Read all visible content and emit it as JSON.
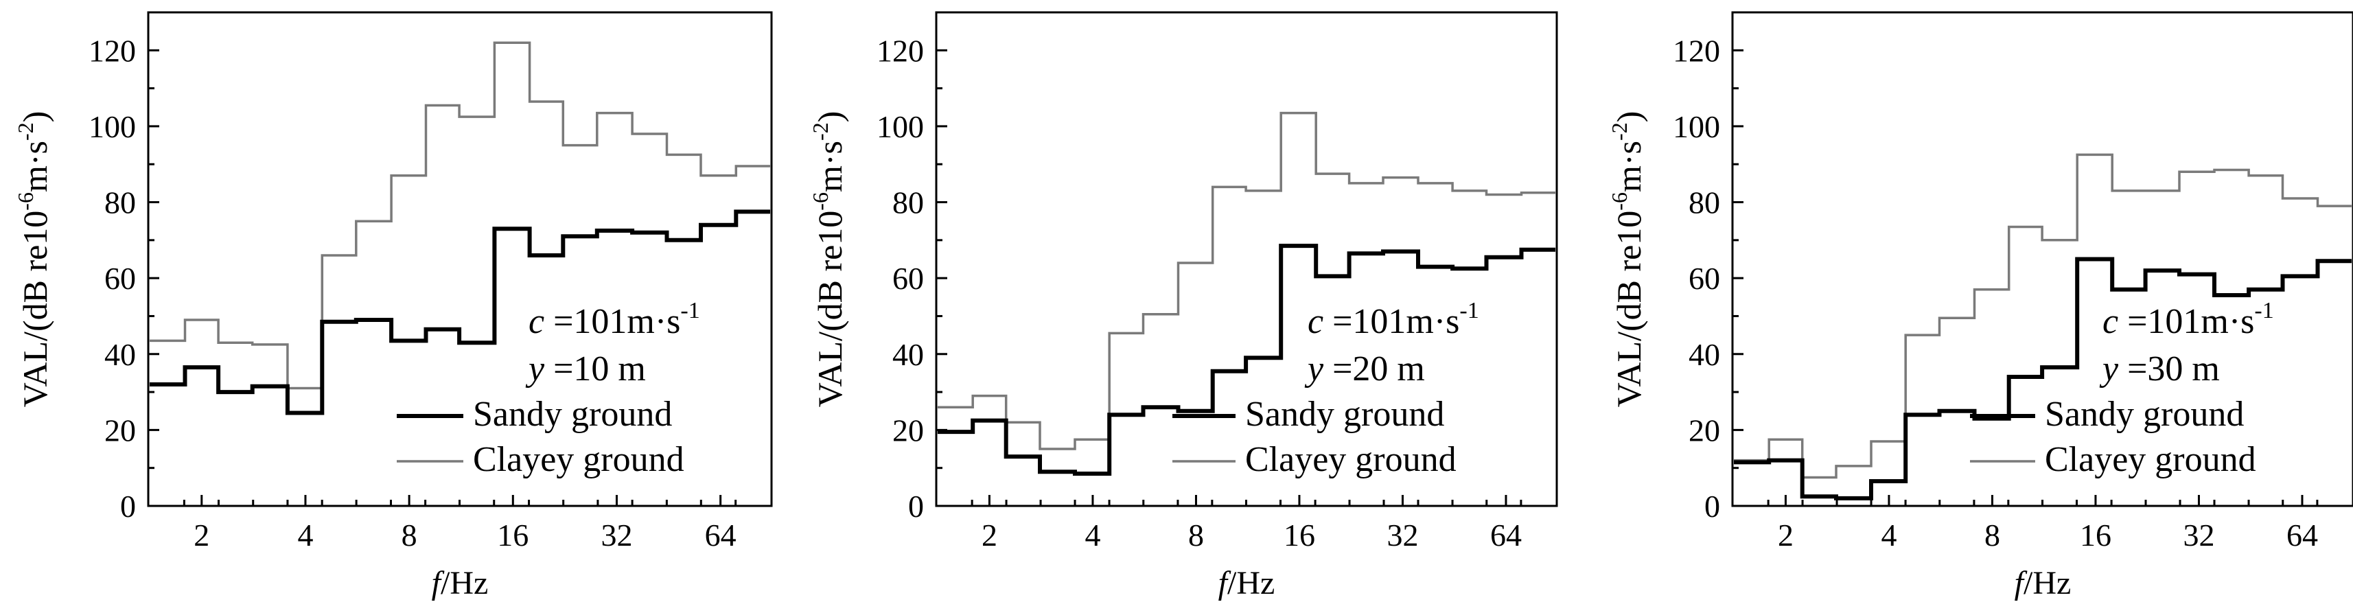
{
  "chart_data": [
    {
      "type": "line",
      "step": true,
      "x_scale": "log2",
      "xlabel_italic": "f",
      "xlabel_unit": "/Hz",
      "ylabel": "VAL/(dB re10-6m·s-2)",
      "ylabel_parts": [
        "VAL/(dB re10",
        "-6",
        "m·s",
        "-2",
        ")"
      ],
      "xticks": [
        "2",
        "4",
        "8",
        "16",
        "32",
        "64"
      ],
      "yticks": [
        "0",
        "20",
        "40",
        "60",
        "80",
        "100",
        "120"
      ],
      "ylim": [
        0,
        130
      ],
      "xlim": [
        1.4,
        90
      ],
      "annotation": {
        "c_label": "c",
        "c_value": "=101m·s",
        "c_exp": "-1",
        "y_label": "y",
        "y_value": "=10 m"
      },
      "x": [
        1.6,
        2,
        2.5,
        3.15,
        4,
        5,
        6.3,
        8,
        10,
        12.5,
        16,
        20,
        25,
        31.5,
        40,
        50,
        63,
        80
      ],
      "series": [
        {
          "name": "Sandy ground",
          "color": "#000000",
          "values": [
            32,
            36.5,
            30,
            31.5,
            24.5,
            48.5,
            49,
            43.5,
            46.5,
            43,
            73,
            66,
            71,
            72.5,
            72,
            70,
            74,
            77.5
          ]
        },
        {
          "name": "Clayey ground",
          "color": "#7a7a7a",
          "values": [
            43.5,
            49,
            43,
            42.5,
            31,
            66,
            75,
            87,
            105.5,
            102.5,
            122,
            106.5,
            95,
            103.5,
            98,
            92.5,
            87,
            89.5
          ]
        }
      ]
    },
    {
      "type": "line",
      "step": true,
      "x_scale": "log2",
      "xlabel_italic": "f",
      "xlabel_unit": "/Hz",
      "ylabel": "VAL/(dB re10-6m·s-2)",
      "ylabel_parts": [
        "VAL/(dB re10",
        "-6",
        "m·s",
        "-2",
        ")"
      ],
      "xticks": [
        "2",
        "4",
        "8",
        "16",
        "32",
        "64"
      ],
      "yticks": [
        "0",
        "20",
        "40",
        "60",
        "80",
        "100",
        "120"
      ],
      "ylim": [
        0,
        130
      ],
      "xlim": [
        1.4,
        90
      ],
      "annotation": {
        "c_label": "c",
        "c_value": "=101m·s",
        "c_exp": "-1",
        "y_label": "y",
        "y_value": "=20 m"
      },
      "x": [
        1.6,
        2,
        2.5,
        3.15,
        4,
        5,
        6.3,
        8,
        10,
        12.5,
        16,
        20,
        25,
        31.5,
        40,
        50,
        63,
        80
      ],
      "series": [
        {
          "name": "Sandy ground",
          "color": "#000000",
          "values": [
            19.5,
            22.5,
            13,
            9,
            8.5,
            24,
            26,
            25,
            35.5,
            39,
            68.5,
            60.5,
            66.5,
            67,
            63,
            62.5,
            65.5,
            67.5
          ]
        },
        {
          "name": "Clayey ground",
          "color": "#7a7a7a",
          "values": [
            26,
            29,
            22,
            15,
            17.5,
            45.5,
            50.5,
            64,
            84,
            83,
            103.5,
            87.5,
            85,
            86.5,
            85,
            83,
            82,
            82.5
          ]
        }
      ]
    },
    {
      "type": "line",
      "step": true,
      "x_scale": "log2",
      "xlabel_italic": "f",
      "xlabel_unit": "/Hz",
      "ylabel": "VAL/(dB re10-6m·s-2)",
      "ylabel_parts": [
        "VAL/(dB re10",
        "-6",
        "m·s",
        "-2",
        ")"
      ],
      "xticks": [
        "2",
        "4",
        "8",
        "16",
        "32",
        "64"
      ],
      "yticks": [
        "0",
        "20",
        "40",
        "60",
        "80",
        "100",
        "120"
      ],
      "ylim": [
        0,
        130
      ],
      "xlim": [
        1.4,
        90
      ],
      "annotation": {
        "c_label": "c",
        "c_value": "=101m·s",
        "c_exp": "-1",
        "y_label": "y",
        "y_value": "=30 m"
      },
      "x": [
        1.6,
        2,
        2.5,
        3.15,
        4,
        5,
        6.3,
        8,
        10,
        12.5,
        16,
        20,
        25,
        31.5,
        40,
        50,
        63,
        80
      ],
      "series": [
        {
          "name": "Sandy ground",
          "color": "#000000",
          "values": [
            11.5,
            12,
            2.5,
            2,
            6.5,
            24,
            25,
            23,
            34,
            36.5,
            65,
            57,
            62,
            61,
            55.5,
            57,
            60.5,
            64.5
          ]
        },
        {
          "name": "Clayey ground",
          "color": "#7a7a7a",
          "values": [
            12,
            17.5,
            7.5,
            10.5,
            17,
            45,
            49.5,
            57,
            73.5,
            70,
            92.5,
            83,
            83,
            88,
            88.5,
            87,
            81,
            79
          ]
        }
      ]
    }
  ]
}
